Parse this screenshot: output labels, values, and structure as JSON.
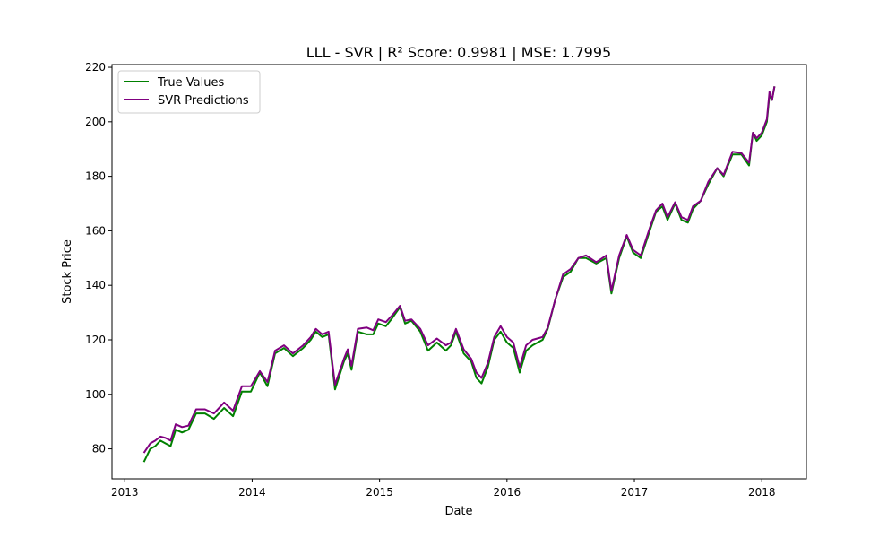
{
  "chart_data": {
    "type": "line",
    "title": "LLL - SVR | R² Score: 0.9981 | MSE: 1.7995",
    "xlabel": "Date",
    "ylabel": "Stock Price",
    "x_ticks": [
      {
        "label": "2013",
        "value": 2013
      },
      {
        "label": "2014",
        "value": 2014
      },
      {
        "label": "2015",
        "value": 2015
      },
      {
        "label": "2016",
        "value": 2016
      },
      {
        "label": "2017",
        "value": 2017
      },
      {
        "label": "2018",
        "value": 2018
      }
    ],
    "y_ticks": [
      80,
      100,
      120,
      140,
      160,
      180,
      200,
      220
    ],
    "xlim": [
      2012.9,
      2018.35
    ],
    "ylim": [
      69,
      221
    ],
    "grid": false,
    "legend": {
      "position": "top-left"
    },
    "series": [
      {
        "name": "True Values",
        "color": "#008000",
        "x": [
          2013.15,
          2013.2,
          2013.24,
          2013.28,
          2013.32,
          2013.36,
          2013.4,
          2013.45,
          2013.5,
          2013.56,
          2013.63,
          2013.7,
          2013.78,
          2013.85,
          2013.92,
          2013.99,
          2014.06,
          2014.12,
          2014.18,
          2014.25,
          2014.32,
          2014.4,
          2014.46,
          2014.5,
          2014.55,
          2014.6,
          2014.65,
          2014.72,
          2014.75,
          2014.78,
          2014.83,
          2014.9,
          2014.95,
          2014.99,
          2015.05,
          2015.1,
          2015.16,
          2015.2,
          2015.25,
          2015.32,
          2015.38,
          2015.45,
          2015.52,
          2015.56,
          2015.6,
          2015.66,
          2015.72,
          2015.76,
          2015.8,
          2015.85,
          2015.9,
          2015.95,
          2016.0,
          2016.05,
          2016.1,
          2016.15,
          2016.2,
          2016.28,
          2016.32,
          2016.38,
          2016.44,
          2016.5,
          2016.56,
          2016.62,
          2016.7,
          2016.78,
          2016.82,
          2016.88,
          2016.94,
          2016.99,
          2017.05,
          2017.12,
          2017.17,
          2017.22,
          2017.26,
          2017.32,
          2017.37,
          2017.42,
          2017.46,
          2017.52,
          2017.58,
          2017.65,
          2017.7,
          2017.77,
          2017.84,
          2017.9,
          2017.93,
          2017.96,
          2018.0,
          2018.04,
          2018.06,
          2018.08,
          2018.1
        ],
        "y": [
          75.2,
          80,
          81,
          83,
          82,
          81,
          87,
          86,
          87,
          93,
          93,
          91,
          95,
          92,
          101,
          101,
          108,
          103,
          115,
          117,
          114,
          117,
          120,
          123,
          121,
          122,
          101.8,
          112,
          115,
          109,
          123,
          122,
          122,
          126,
          125,
          128,
          132,
          126,
          127,
          123,
          116,
          119,
          116,
          118,
          123,
          115,
          112,
          106,
          104,
          110,
          120,
          123,
          119,
          117,
          108,
          116,
          118,
          120,
          124,
          135,
          143,
          145,
          150,
          150,
          148,
          150,
          137,
          150,
          158,
          152,
          150,
          160,
          167,
          169,
          164,
          170,
          164,
          163,
          168,
          171,
          177,
          183,
          180,
          188,
          188,
          184,
          196,
          193,
          195,
          200,
          210,
          208,
          213
        ]
      },
      {
        "name": "SVR Predictions",
        "color": "#800080",
        "x": [
          2013.15,
          2013.2,
          2013.24,
          2013.28,
          2013.32,
          2013.36,
          2013.4,
          2013.45,
          2013.5,
          2013.56,
          2013.63,
          2013.7,
          2013.78,
          2013.85,
          2013.92,
          2013.99,
          2014.06,
          2014.12,
          2014.18,
          2014.25,
          2014.32,
          2014.4,
          2014.46,
          2014.5,
          2014.55,
          2014.6,
          2014.65,
          2014.72,
          2014.75,
          2014.78,
          2014.83,
          2014.9,
          2014.95,
          2014.99,
          2015.05,
          2015.1,
          2015.16,
          2015.2,
          2015.25,
          2015.32,
          2015.38,
          2015.45,
          2015.52,
          2015.56,
          2015.6,
          2015.66,
          2015.72,
          2015.76,
          2015.8,
          2015.85,
          2015.9,
          2015.95,
          2016.0,
          2016.05,
          2016.1,
          2016.15,
          2016.2,
          2016.28,
          2016.32,
          2016.38,
          2016.44,
          2016.5,
          2016.56,
          2016.62,
          2016.7,
          2016.78,
          2016.82,
          2016.88,
          2016.94,
          2016.99,
          2017.05,
          2017.12,
          2017.17,
          2017.22,
          2017.26,
          2017.32,
          2017.37,
          2017.42,
          2017.46,
          2017.52,
          2017.58,
          2017.65,
          2017.7,
          2017.77,
          2017.84,
          2017.9,
          2017.93,
          2017.96,
          2018.0,
          2018.04,
          2018.06,
          2018.08,
          2018.1
        ],
        "y": [
          78.5,
          82,
          83,
          84.5,
          84,
          83,
          89,
          88,
          88.5,
          94.5,
          94.5,
          93,
          97,
          94,
          103,
          103,
          108.5,
          104.5,
          116,
          118,
          115,
          118,
          121,
          124,
          122,
          123,
          103.5,
          113,
          116.5,
          110.5,
          124,
          124.5,
          123.5,
          127.5,
          126.5,
          129,
          132.5,
          127,
          127.5,
          124,
          118,
          120.5,
          118,
          119,
          124,
          116.5,
          113,
          108,
          106,
          111.5,
          121,
          125,
          121,
          119,
          110,
          118,
          120,
          121,
          124.5,
          135,
          144,
          146,
          150,
          151,
          148.5,
          151,
          138,
          151,
          158.5,
          153,
          151,
          161,
          167.5,
          170,
          165,
          170.5,
          165,
          164,
          169,
          171,
          178,
          183,
          180.5,
          189,
          188.5,
          185,
          196,
          194,
          196,
          201,
          211,
          208,
          213
        ]
      }
    ]
  }
}
